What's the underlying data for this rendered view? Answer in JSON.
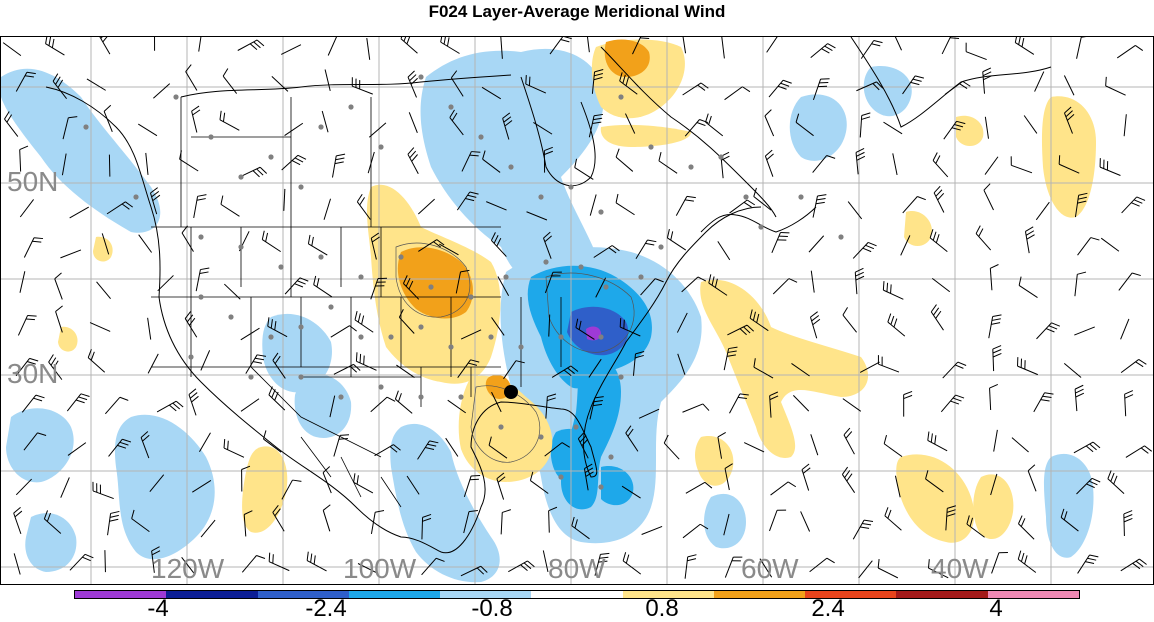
{
  "title": "F024 Layer-Average Meridional Wind",
  "map": {
    "lat_labels": [
      "50N",
      "30N"
    ],
    "lon_labels": [
      "120W",
      "100W",
      "80W",
      "60W",
      "40W"
    ]
  },
  "colorbar": {
    "colors": [
      "#9e3ad6",
      "#0c1e94",
      "#2f5fc9",
      "#1ea8ea",
      "#a8d7f5",
      "#ffffff",
      "#ffe48a",
      "#f2a11a",
      "#e8441c",
      "#a31a1a",
      "#ef89b4"
    ],
    "tick_labels": [
      "-4",
      "-2.4",
      "-0.8",
      "0.8",
      "2.4",
      "4"
    ]
  },
  "colors": {
    "light_blue": "#a8d7f5",
    "medium_blue": "#1ea8ea",
    "dark_blue": "#2f5fc9",
    "purple": "#9e3ad6",
    "yellow": "#ffe48a",
    "orange": "#f2a11a",
    "grid": "#b4b4b4",
    "station_dot": "#808080"
  }
}
